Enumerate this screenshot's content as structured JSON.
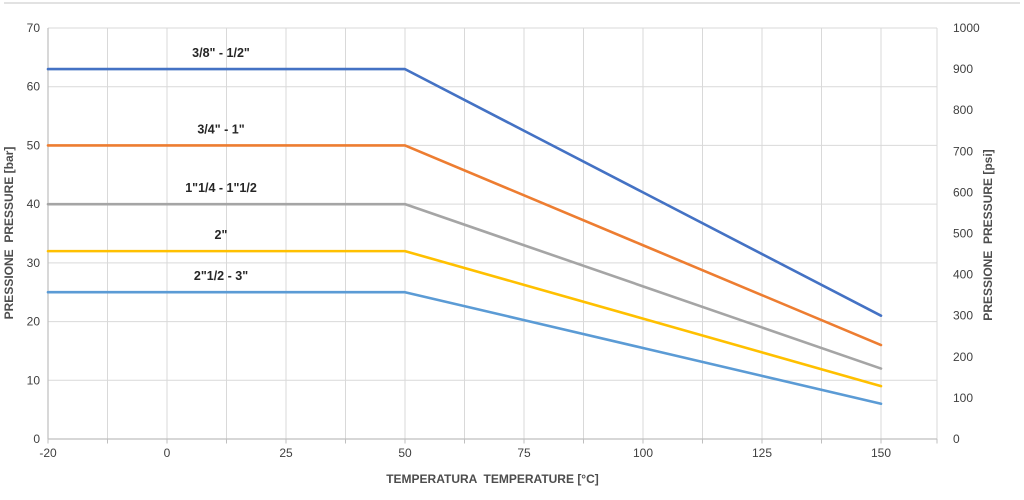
{
  "chart_data": {
    "type": "line",
    "title": "",
    "xlabel": "TEMPERATURA  TEMPERATURE [°C]",
    "ylabel_left": "PRESSIONE  PRESSURE [bar]",
    "ylabel_right": "PRESSIONE  PRESSURE [psi]",
    "x_categories": [
      "-20",
      "0",
      "25",
      "50",
      "75",
      "100",
      "125",
      "150"
    ],
    "x_values": [
      -20,
      0,
      25,
      50,
      75,
      100,
      125,
      150
    ],
    "y_left_axis": {
      "min": 0,
      "max": 70,
      "step": 10,
      "ticks": [
        "0",
        "10",
        "20",
        "30",
        "40",
        "50",
        "60",
        "70"
      ]
    },
    "y_right_axis": {
      "min": 0,
      "max": 1000,
      "step": 100,
      "ticks": [
        "0",
        "100",
        "200",
        "300",
        "400",
        "500",
        "600",
        "700",
        "800",
        "900",
        "1000"
      ]
    },
    "grid": true,
    "legend_position": "inline-labels",
    "series": [
      {
        "name": "3/8\" - 1/2\"",
        "color": "#4472C4",
        "values": [
          63,
          63,
          63,
          63,
          52.5,
          42,
          31.5,
          21
        ]
      },
      {
        "name": "3/4\" - 1\"",
        "color": "#ED7D31",
        "values": [
          50,
          50,
          50,
          50,
          41.5,
          33,
          24.5,
          16
        ]
      },
      {
        "name": "1\"1/4 - 1\"1/2",
        "color": "#A5A5A5",
        "values": [
          40,
          40,
          40,
          40,
          33,
          26,
          19,
          12
        ]
      },
      {
        "name": "2\"",
        "color": "#FFC000",
        "values": [
          32,
          32,
          32,
          32,
          26.25,
          20.5,
          14.75,
          9
        ]
      },
      {
        "name": "2\"1/2 - 3\"",
        "color": "#5B9BD5",
        "values": [
          25,
          25,
          25,
          25,
          20.25,
          15.5,
          10.75,
          6
        ]
      }
    ]
  },
  "colors": {
    "gridline": "#D9D9D9",
    "axis_line": "#BFBFBF",
    "tick_label": "#404040",
    "axis_title": "#4D4D4D",
    "series_label": "#262626",
    "chart_border": "#D9D9D9",
    "background": "#FFFFFF"
  }
}
